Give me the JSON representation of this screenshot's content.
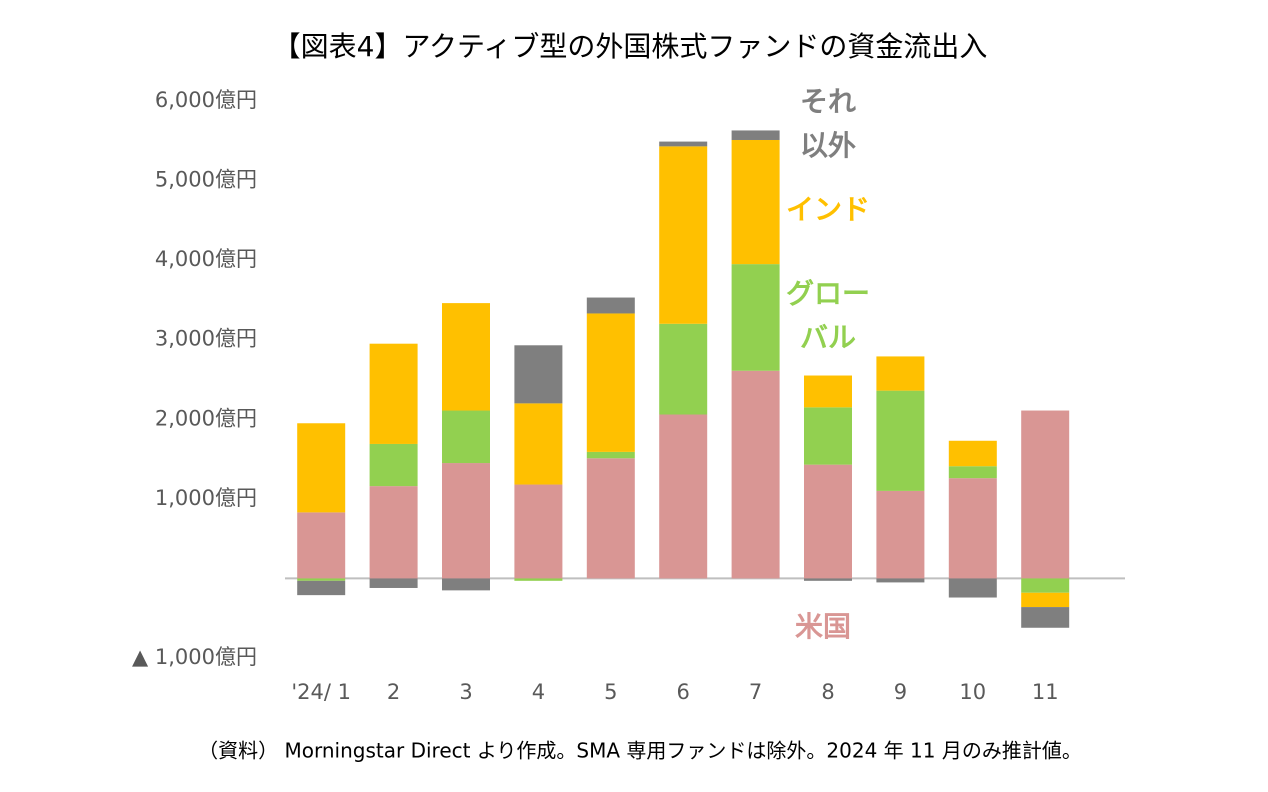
{
  "chart_data": {
    "type": "stacked_bar",
    "title": "【図表4】アクティブ型の外国株式ファンドの資金流出入",
    "footnote": "（資料） Morningstar Direct より作成。SMA 専用ファンドは除外。2024 年 11 月のみ推計値。",
    "categories": [
      "'24/ 1",
      "2",
      "3",
      "4",
      "5",
      "6",
      "7",
      "8",
      "9",
      "10",
      "11"
    ],
    "series": [
      {
        "name": "米国",
        "color": "#d99694",
        "values": [
          830,
          1160,
          1450,
          1180,
          1510,
          2060,
          2610,
          1430,
          1100,
          1260,
          2110
        ]
      },
      {
        "name": "グロー\nバル",
        "color": "#92d050",
        "values": [
          -30,
          530,
          660,
          -30,
          80,
          1140,
          1340,
          720,
          1260,
          150,
          -180
        ]
      },
      {
        "name": "インド",
        "color": "#ffc000",
        "values": [
          1120,
          1260,
          1350,
          1020,
          1740,
          2230,
          1560,
          400,
          430,
          320,
          -180
        ]
      },
      {
        "name": "それ\n以外",
        "color": "#7f7f7f",
        "values": [
          -180,
          -120,
          -150,
          730,
          200,
          60,
          120,
          -30,
          -50,
          -240,
          -260
        ]
      }
    ],
    "ylim": [
      -1000,
      6000
    ],
    "yticks": [
      {
        "value": -1000,
        "label": "▲ 1,000億円"
      },
      {
        "value": 1000,
        "label": "1,000億円"
      },
      {
        "value": 2000,
        "label": "2,000億円"
      },
      {
        "value": 3000,
        "label": "3,000億円"
      },
      {
        "value": 4000,
        "label": "4,000億円"
      },
      {
        "value": 5000,
        "label": "5,000億円"
      },
      {
        "value": 6000,
        "label": "6,000億円"
      }
    ],
    "grid": false
  }
}
